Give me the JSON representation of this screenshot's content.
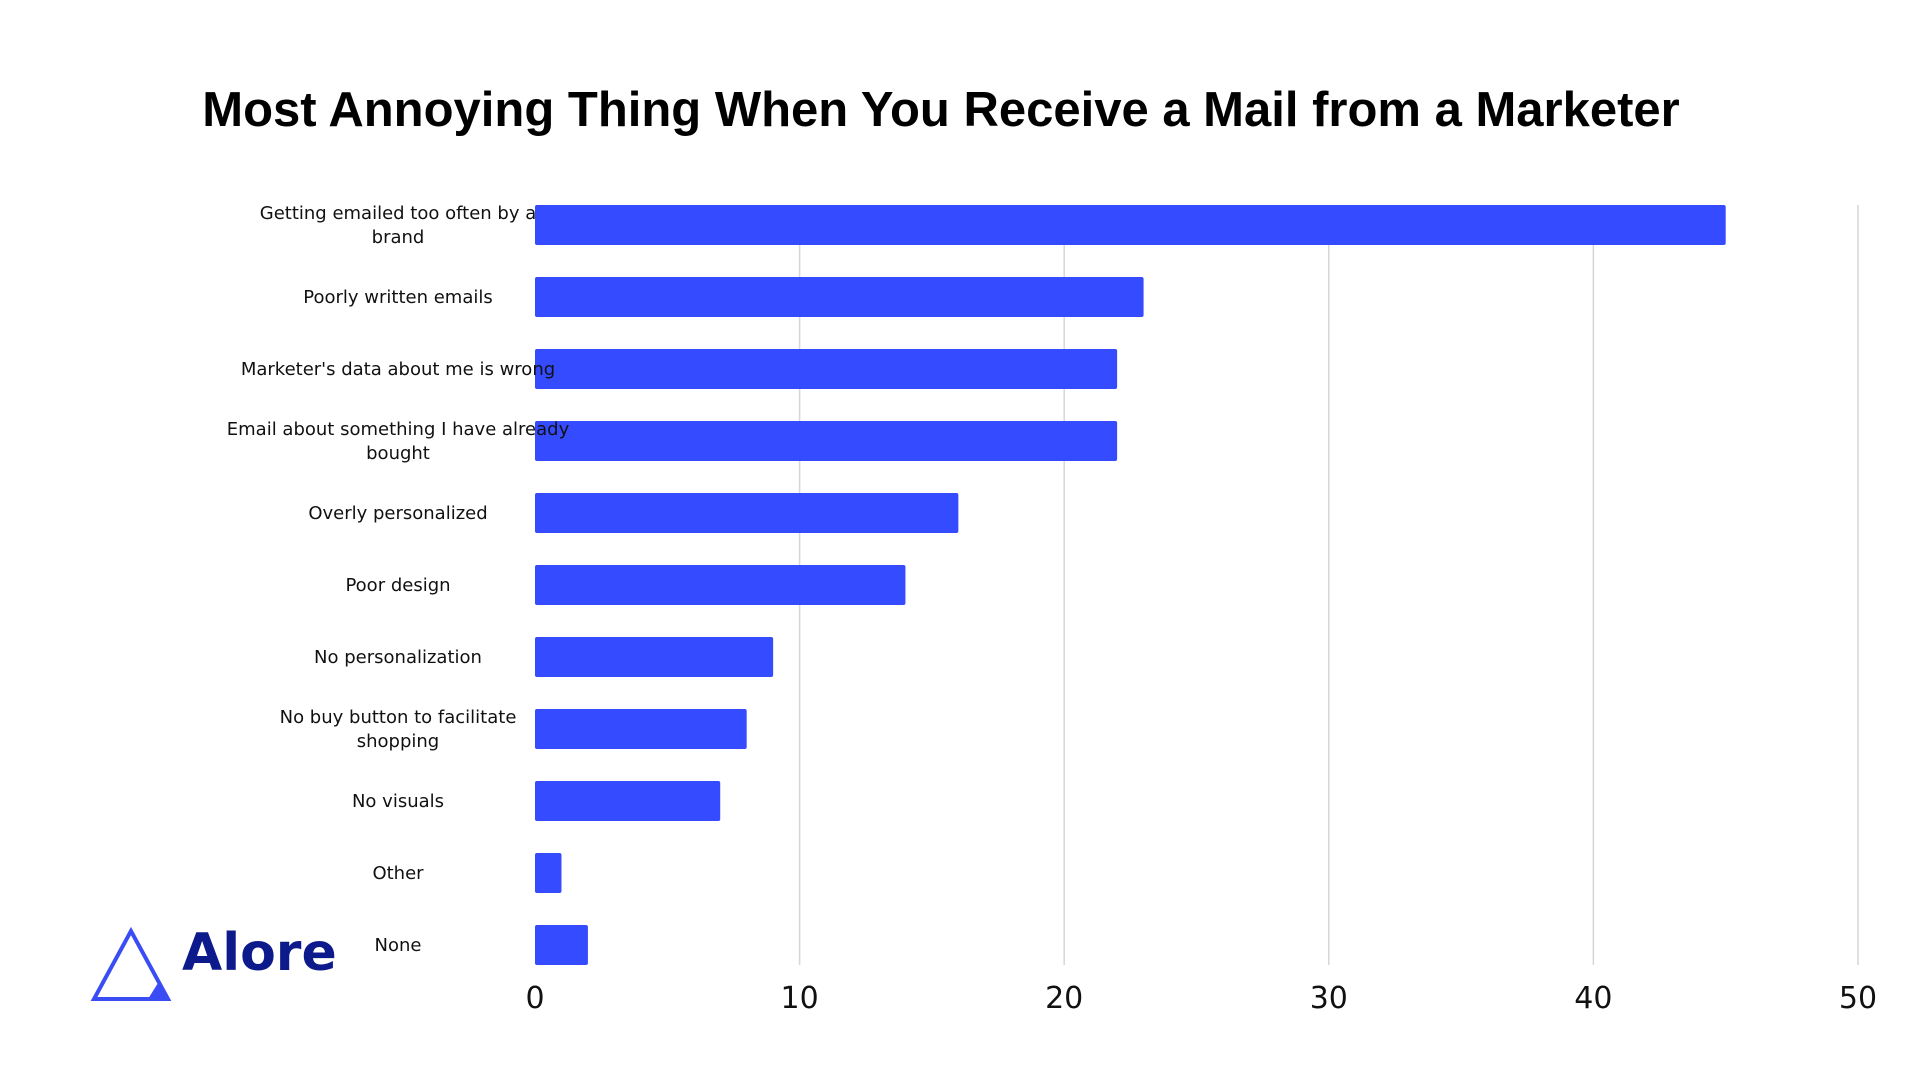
{
  "brand": {
    "name": "Alore",
    "logo_icon": "triangle-logo-icon",
    "logo_color": "#3a4df5",
    "text_color": "#0c1a8c"
  },
  "chart_data": {
    "type": "bar",
    "orientation": "horizontal",
    "title": "Most Annoying Thing When You Receive a Mail from a Marketer",
    "xlabel": "",
    "ylabel": "",
    "xlim": [
      0,
      50
    ],
    "ticks": [
      0,
      10,
      20,
      30,
      40,
      50
    ],
    "grid": true,
    "bar_color": "#354bff",
    "categories": [
      [
        "Getting emailed too often by a",
        "brand"
      ],
      [
        "Poorly written emails"
      ],
      [
        "Marketer's data about me is wrong"
      ],
      [
        "Email about something I have already",
        "bought"
      ],
      [
        "Overly personalized"
      ],
      [
        "Poor design"
      ],
      [
        "No personalization"
      ],
      [
        "No buy button to facilitate",
        "shopping"
      ],
      [
        "No visuals"
      ],
      [
        "Other"
      ],
      [
        "None"
      ]
    ],
    "values": [
      45,
      23,
      22,
      22,
      16,
      14,
      9,
      8,
      7,
      1,
      2
    ]
  }
}
